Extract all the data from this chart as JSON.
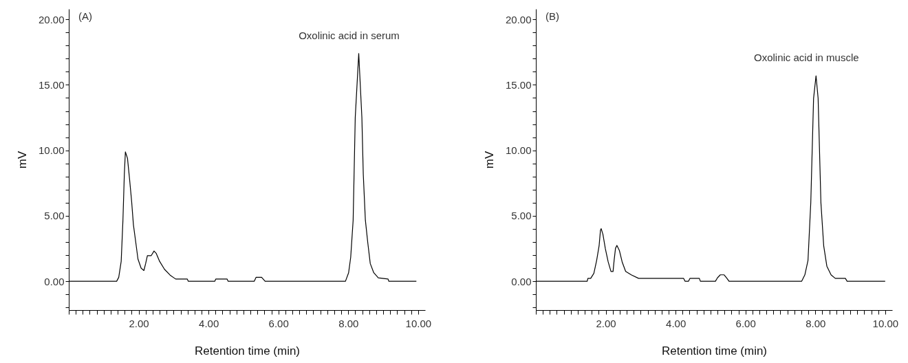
{
  "chart_data": [
    {
      "type": "line",
      "xlabel": "Retention time (min)",
      "ylabel": "mV",
      "annotations": [
        "(A)",
        {
          "text": "Oxolinic acid in serum",
          "x": 8.3,
          "y": 17.4
        }
      ],
      "series": [
        {
          "color": "#000000",
          "x": [
            0,
            1.37,
            1.43,
            1.5,
            1.55,
            1.59,
            1.62,
            1.68,
            1.74,
            1.8,
            1.85,
            1.92,
            1.98,
            2.07,
            2.15,
            2.2,
            2.25,
            2.36,
            2.44,
            2.5,
            2.6,
            2.74,
            2.9,
            3.06,
            3.39,
            3.42,
            4.18,
            4.21,
            4.53,
            4.56,
            5.31,
            5.36,
            5.52,
            5.62,
            7.92,
            8.01,
            8.07,
            8.14,
            8.2,
            8.3,
            8.39,
            8.43,
            8.49,
            8.56,
            8.63,
            8.73,
            8.86,
            9.14,
            9.16,
            9.95
          ],
          "values": [
            0,
            0,
            0.3,
            1.52,
            4.67,
            8.17,
            9.88,
            9.4,
            7.8,
            6.07,
            4.32,
            2.92,
            1.7,
            1.0,
            0.82,
            1.35,
            1.96,
            1.96,
            2.31,
            2.14,
            1.52,
            0.91,
            0.47,
            0.17,
            0.17,
            0,
            0,
            0.17,
            0.17,
            0,
            0,
            0.3,
            0.3,
            0,
            0,
            0.65,
            1.83,
            4.67,
            12.5,
            17.4,
            12.5,
            8.17,
            4.67,
            2.92,
            1.35,
            0.65,
            0.26,
            0.17,
            0,
            0
          ]
        }
      ],
      "xlim": [
        0,
        10.2
      ],
      "ylim": [
        -2.2,
        20.8
      ],
      "xticks": [
        {
          "value": 0,
          "label": null
        },
        {
          "value": 0.2,
          "label": null
        },
        {
          "value": 0.4,
          "label": null
        },
        {
          "value": 0.6,
          "label": null
        },
        {
          "value": 0.8,
          "label": null
        },
        {
          "value": 1,
          "label": null
        },
        {
          "value": 1.2,
          "label": null
        },
        {
          "value": 1.4,
          "label": null
        },
        {
          "value": 1.6,
          "label": null
        },
        {
          "value": 1.8,
          "label": null
        },
        {
          "value": 2,
          "label": "2.00"
        },
        {
          "value": 2.2,
          "label": null
        },
        {
          "value": 2.4,
          "label": null
        },
        {
          "value": 2.6,
          "label": null
        },
        {
          "value": 2.8,
          "label": null
        },
        {
          "value": 3,
          "label": null
        },
        {
          "value": 3.2,
          "label": null
        },
        {
          "value": 3.4,
          "label": null
        },
        {
          "value": 3.6,
          "label": null
        },
        {
          "value": 3.8,
          "label": null
        },
        {
          "value": 4,
          "label": "4.00"
        },
        {
          "value": 4.2,
          "label": null
        },
        {
          "value": 4.4,
          "label": null
        },
        {
          "value": 4.6,
          "label": null
        },
        {
          "value": 4.8,
          "label": null
        },
        {
          "value": 5,
          "label": null
        },
        {
          "value": 5.2,
          "label": null
        },
        {
          "value": 5.4,
          "label": null
        },
        {
          "value": 5.6,
          "label": null
        },
        {
          "value": 5.8,
          "label": null
        },
        {
          "value": 6,
          "label": "6.00"
        },
        {
          "value": 6.2,
          "label": null
        },
        {
          "value": 6.4,
          "label": null
        },
        {
          "value": 6.6,
          "label": null
        },
        {
          "value": 6.8,
          "label": null
        },
        {
          "value": 7,
          "label": null
        },
        {
          "value": 7.2,
          "label": null
        },
        {
          "value": 7.4,
          "label": null
        },
        {
          "value": 7.6,
          "label": null
        },
        {
          "value": 7.8,
          "label": null
        },
        {
          "value": 8,
          "label": "8.00"
        },
        {
          "value": 8.2,
          "label": null
        },
        {
          "value": 8.4,
          "label": null
        },
        {
          "value": 8.6,
          "label": null
        },
        {
          "value": 8.8,
          "label": null
        },
        {
          "value": 9,
          "label": null
        },
        {
          "value": 9.2,
          "label": null
        },
        {
          "value": 9.4,
          "label": null
        },
        {
          "value": 9.6,
          "label": null
        },
        {
          "value": 9.8,
          "label": null
        },
        {
          "value": 10,
          "label": "10.00"
        }
      ],
      "yticks": [
        {
          "value": -2,
          "label": null
        },
        {
          "value": -1,
          "label": null
        },
        {
          "value": 0,
          "label": "0.00"
        },
        {
          "value": 1,
          "label": null
        },
        {
          "value": 2,
          "label": null
        },
        {
          "value": 3,
          "label": null
        },
        {
          "value": 4,
          "label": null
        },
        {
          "value": 5,
          "label": "5.00"
        },
        {
          "value": 6,
          "label": null
        },
        {
          "value": 7,
          "label": null
        },
        {
          "value": 8,
          "label": null
        },
        {
          "value": 9,
          "label": null
        },
        {
          "value": 10,
          "label": "10.00"
        },
        {
          "value": 11,
          "label": null
        },
        {
          "value": 12,
          "label": null
        },
        {
          "value": 13,
          "label": null
        },
        {
          "value": 14,
          "label": null
        },
        {
          "value": 15,
          "label": "15.00"
        },
        {
          "value": 16,
          "label": null
        },
        {
          "value": 17,
          "label": null
        },
        {
          "value": 18,
          "label": null
        },
        {
          "value": 19,
          "label": null
        },
        {
          "value": 20,
          "label": "20.00"
        }
      ],
      "grid": false
    },
    {
      "type": "line",
      "xlabel": "Retention time (min)",
      "ylabel": "mV",
      "annotations": [
        "(B)",
        {
          "text": "Oxolinic acid in muscle",
          "x": 8.02,
          "y": 15.69
        }
      ],
      "series": [
        {
          "color": "#000000",
          "x": [
            0,
            1.47,
            1.49,
            1.57,
            1.66,
            1.74,
            1.81,
            1.85,
            1.87,
            1.92,
            1.99,
            2.07,
            2.15,
            2.21,
            2.24,
            2.28,
            2.32,
            2.39,
            2.47,
            2.57,
            2.73,
            2.94,
            4.23,
            4.27,
            4.37,
            4.41,
            4.68,
            4.71,
            5.14,
            5.2,
            5.28,
            5.39,
            5.47,
            5.53,
            7.61,
            7.7,
            7.79,
            7.87,
            7.95,
            8.02,
            8.08,
            8.16,
            8.24,
            8.33,
            8.45,
            8.57,
            8.86,
            8.91,
            10
          ],
          "values": [
            0,
            0,
            0.22,
            0.22,
            0.6,
            1.59,
            2.7,
            3.91,
            4.02,
            3.58,
            2.48,
            1.48,
            0.75,
            0.75,
            1.59,
            2.52,
            2.74,
            2.36,
            1.48,
            0.75,
            0.49,
            0.22,
            0.22,
            0,
            0,
            0.22,
            0.22,
            0,
            0,
            0.27,
            0.49,
            0.49,
            0.22,
            0,
            0,
            0.49,
            1.59,
            6.0,
            13.97,
            15.69,
            13.97,
            6.0,
            2.7,
            1.15,
            0.49,
            0.22,
            0.22,
            0,
            0
          ]
        }
      ],
      "xlim": [
        0,
        10.2
      ],
      "ylim": [
        -2.2,
        20.8
      ],
      "xticks": [
        {
          "value": 0,
          "label": null
        },
        {
          "value": 0.2,
          "label": null
        },
        {
          "value": 0.4,
          "label": null
        },
        {
          "value": 0.6,
          "label": null
        },
        {
          "value": 0.8,
          "label": null
        },
        {
          "value": 1,
          "label": null
        },
        {
          "value": 1.2,
          "label": null
        },
        {
          "value": 1.4,
          "label": null
        },
        {
          "value": 1.6,
          "label": null
        },
        {
          "value": 1.8,
          "label": null
        },
        {
          "value": 2,
          "label": "2.00"
        },
        {
          "value": 2.2,
          "label": null
        },
        {
          "value": 2.4,
          "label": null
        },
        {
          "value": 2.6,
          "label": null
        },
        {
          "value": 2.8,
          "label": null
        },
        {
          "value": 3,
          "label": null
        },
        {
          "value": 3.2,
          "label": null
        },
        {
          "value": 3.4,
          "label": null
        },
        {
          "value": 3.6,
          "label": null
        },
        {
          "value": 3.8,
          "label": null
        },
        {
          "value": 4,
          "label": "4.00"
        },
        {
          "value": 4.2,
          "label": null
        },
        {
          "value": 4.4,
          "label": null
        },
        {
          "value": 4.6,
          "label": null
        },
        {
          "value": 4.8,
          "label": null
        },
        {
          "value": 5,
          "label": null
        },
        {
          "value": 5.2,
          "label": null
        },
        {
          "value": 5.4,
          "label": null
        },
        {
          "value": 5.6,
          "label": null
        },
        {
          "value": 5.8,
          "label": null
        },
        {
          "value": 6,
          "label": "6.00"
        },
        {
          "value": 6.2,
          "label": null
        },
        {
          "value": 6.4,
          "label": null
        },
        {
          "value": 6.6,
          "label": null
        },
        {
          "value": 6.8,
          "label": null
        },
        {
          "value": 7,
          "label": null
        },
        {
          "value": 7.2,
          "label": null
        },
        {
          "value": 7.4,
          "label": null
        },
        {
          "value": 7.6,
          "label": null
        },
        {
          "value": 7.8,
          "label": null
        },
        {
          "value": 8,
          "label": "8.00"
        },
        {
          "value": 8.2,
          "label": null
        },
        {
          "value": 8.4,
          "label": null
        },
        {
          "value": 8.6,
          "label": null
        },
        {
          "value": 8.8,
          "label": null
        },
        {
          "value": 9,
          "label": null
        },
        {
          "value": 9.2,
          "label": null
        },
        {
          "value": 9.4,
          "label": null
        },
        {
          "value": 9.6,
          "label": null
        },
        {
          "value": 9.8,
          "label": null
        },
        {
          "value": 10,
          "label": "10.00"
        }
      ],
      "yticks": [
        {
          "value": -2,
          "label": null
        },
        {
          "value": -1,
          "label": null
        },
        {
          "value": 0,
          "label": "0.00"
        },
        {
          "value": 1,
          "label": null
        },
        {
          "value": 2,
          "label": null
        },
        {
          "value": 3,
          "label": null
        },
        {
          "value": 4,
          "label": null
        },
        {
          "value": 5,
          "label": "5.00"
        },
        {
          "value": 6,
          "label": null
        },
        {
          "value": 7,
          "label": null
        },
        {
          "value": 8,
          "label": null
        },
        {
          "value": 9,
          "label": null
        },
        {
          "value": 10,
          "label": "10.00"
        },
        {
          "value": 11,
          "label": null
        },
        {
          "value": 12,
          "label": null
        },
        {
          "value": 13,
          "label": null
        },
        {
          "value": 14,
          "label": null
        },
        {
          "value": 15,
          "label": "15.00"
        },
        {
          "value": 16,
          "label": null
        },
        {
          "value": 17,
          "label": null
        },
        {
          "value": 18,
          "label": null
        },
        {
          "value": 19,
          "label": null
        },
        {
          "value": 20,
          "label": "20.00"
        }
      ],
      "grid": false
    }
  ]
}
